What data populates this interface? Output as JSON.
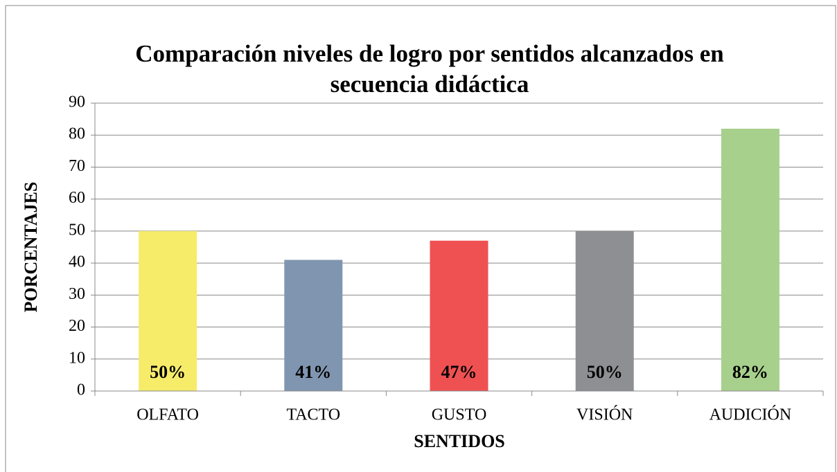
{
  "chart_data": {
    "type": "bar",
    "title": "Comparación niveles de logro por sentidos alcanzados en secuencia didáctica",
    "x_label": "SENTIDOS",
    "y_label": "PORCENTAJES",
    "categories": [
      "OLFATO",
      "TACTO",
      "GUSTO",
      "VISIÓN",
      "AUDICIÓN"
    ],
    "values": [
      50,
      41,
      47,
      50,
      82
    ],
    "value_labels": [
      "50%",
      "41%",
      "47%",
      "50%",
      "82%"
    ],
    "colors": [
      "#f7ec6a",
      "#8096b0",
      "#ef5152",
      "#8e8f93",
      "#a8d08d"
    ],
    "ylim": [
      0,
      90
    ],
    "yticks": [
      0,
      10,
      20,
      30,
      40,
      50,
      60,
      70,
      80,
      90
    ],
    "grid": true
  }
}
